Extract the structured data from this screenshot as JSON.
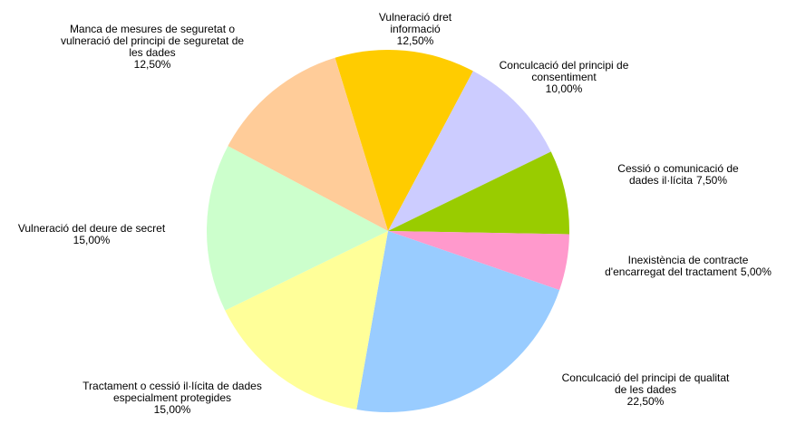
{
  "chart_data": {
    "type": "pie",
    "categories": [
      "Vulneració dret informació",
      "Conculcació del principi de consentiment",
      "Cessió o comunicació de dades il·lícita",
      "Inexistència de contracte d'encarregat del tractament",
      "Conculcació del principi de qualitat de les dades",
      "Tractament o cessió il·lícita de dades especialment protegides",
      "Vulneració del deure de secret",
      "Manca de mesures de seguretat o vulneració del principi de seguretat de les dades"
    ],
    "values": [
      12.5,
      10,
      7.5,
      5,
      22.5,
      15,
      15,
      12.5
    ],
    "value_labels": [
      "12,50%",
      "10,00%",
      "7,50%",
      "5,00%",
      "22,50%",
      "15,00%",
      "15,00%",
      "12,50%"
    ],
    "colors": [
      "#ffcc00",
      "#ccccff",
      "#99cc00",
      "#ff99cc",
      "#99ccff",
      "#ffff99",
      "#ccffcc",
      "#ffcc99"
    ]
  }
}
